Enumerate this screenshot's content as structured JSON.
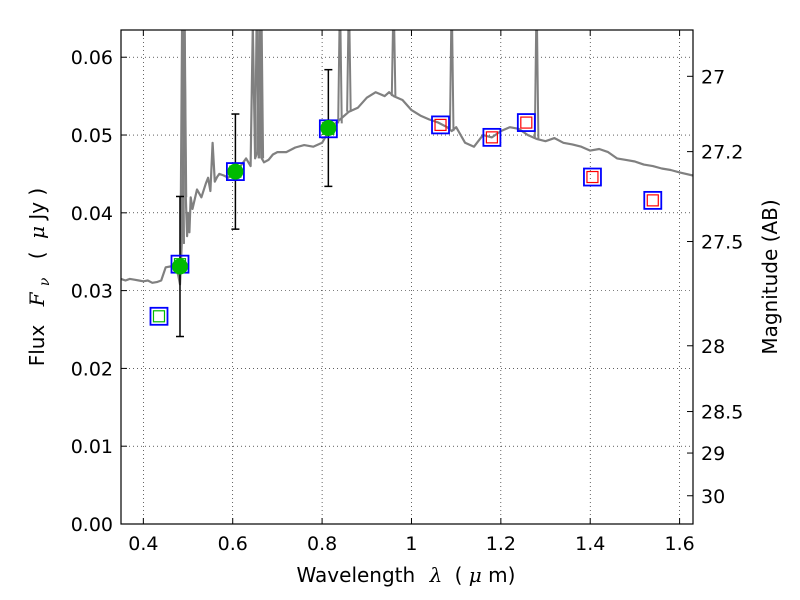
{
  "chart_data": {
    "type": "scatter",
    "title": "",
    "xlabel": {
      "prefix": "Wavelength",
      "symbol": "λ",
      "unit_open": "(",
      "unit_mu": "μ",
      "unit_rest": "m)"
    },
    "ylabel": {
      "prefix": "Flux",
      "symbol": "F",
      "symbol_sub": "ν",
      "unit_open": "(",
      "unit_mu": "μ",
      "unit_rest": "Jy )"
    },
    "y2label": "Magnitude (AB)",
    "xlim": [
      0.35,
      1.63
    ],
    "ylim": [
      0.0,
      0.0635
    ],
    "xticks": [
      0.4,
      0.6,
      0.8,
      1.0,
      1.2,
      1.4,
      1.6
    ],
    "xtick_labels": [
      "0.4",
      "0.6",
      "0.8",
      "1",
      "1.2",
      "1.4",
      "1.6"
    ],
    "yticks": [
      0.0,
      0.01,
      0.02,
      0.03,
      0.04,
      0.05,
      0.06
    ],
    "ytick_labels": [
      "0.00",
      "0.01",
      "0.02",
      "0.03",
      "0.04",
      "0.05",
      "0.06"
    ],
    "y2ticks": [
      {
        "label": "27",
        "mag": 27.0
      },
      {
        "label": "27.2",
        "mag": 27.2
      },
      {
        "label": "27.5",
        "mag": 27.5
      },
      {
        "label": "28",
        "mag": 28.0
      },
      {
        "label": "28.5",
        "mag": 28.5
      },
      {
        "label": "29",
        "mag": 29.0
      },
      {
        "label": "30",
        "mag": 30.0
      }
    ],
    "grid": true,
    "colors": {
      "model_line": "#808080",
      "observed_point": "#00bb00",
      "model_box": "#0000ff",
      "box_inner_green": "#00bb00",
      "box_inner_red": "#ff0000",
      "errorbar": "#000000"
    },
    "series": [
      {
        "name": "model-spectrum",
        "kind": "line",
        "x": [
          0.35,
          0.36,
          0.37,
          0.38,
          0.39,
          0.4,
          0.41,
          0.42,
          0.43,
          0.44,
          0.45,
          0.46,
          0.47,
          0.478,
          0.482,
          0.486,
          0.49,
          0.492,
          0.495,
          0.498,
          0.5,
          0.503,
          0.506,
          0.51,
          0.52,
          0.53,
          0.54,
          0.545,
          0.55,
          0.555,
          0.56,
          0.565,
          0.57,
          0.58,
          0.59,
          0.6,
          0.61,
          0.62,
          0.63,
          0.64,
          0.645,
          0.65,
          0.655,
          0.66,
          0.665,
          0.67,
          0.68,
          0.69,
          0.7,
          0.72,
          0.74,
          0.76,
          0.78,
          0.8,
          0.82,
          0.84,
          0.86,
          0.88,
          0.9,
          0.92,
          0.94,
          0.95,
          0.96,
          0.98,
          1.0,
          1.02,
          1.04,
          1.06,
          1.08,
          1.09,
          1.1,
          1.12,
          1.14,
          1.16,
          1.18,
          1.2,
          1.22,
          1.24,
          1.26,
          1.28,
          1.3,
          1.32,
          1.34,
          1.36,
          1.38,
          1.4,
          1.42,
          1.44,
          1.46,
          1.48,
          1.5,
          1.52,
          1.54,
          1.56,
          1.58,
          1.6,
          1.63
        ],
        "y": [
          0.0315,
          0.0313,
          0.0315,
          0.0314,
          0.0313,
          0.0312,
          0.0313,
          0.031,
          0.0311,
          0.0313,
          0.033,
          0.0331,
          0.0333,
          0.032,
          0.0308,
          0.0362,
          0.05,
          0.064,
          0.042,
          0.037,
          0.04,
          0.0375,
          0.042,
          0.0405,
          0.043,
          0.042,
          0.0438,
          0.0445,
          0.0428,
          0.049,
          0.044,
          0.0446,
          0.045,
          0.0448,
          0.0445,
          0.0452,
          0.0455,
          0.0462,
          0.047,
          0.046,
          0.064,
          0.047,
          0.0478,
          0.064,
          0.047,
          0.0465,
          0.0468,
          0.0475,
          0.0478,
          0.0478,
          0.0484,
          0.0487,
          0.0485,
          0.049,
          0.051,
          0.052,
          0.053,
          0.0535,
          0.0548,
          0.0555,
          0.055,
          0.0555,
          0.055,
          0.0545,
          0.0532,
          0.0525,
          0.052,
          0.0516,
          0.051,
          0.0505,
          0.051,
          0.049,
          0.0485,
          0.05,
          0.0497,
          0.0505,
          0.051,
          0.0508,
          0.05,
          0.0495,
          0.0492,
          0.0496,
          0.049,
          0.0488,
          0.0485,
          0.048,
          0.0482,
          0.0478,
          0.047,
          0.0468,
          0.0466,
          0.0462,
          0.046,
          0.0457,
          0.0455,
          0.0452,
          0.0448
        ]
      },
      {
        "name": "emission-spikes",
        "kind": "line-spikes",
        "x": [
          0.487,
          0.492,
          0.664,
          0.654,
          0.84,
          0.86,
          0.96,
          1.09,
          1.28
        ],
        "y_base": [
          0.036,
          0.042,
          0.047,
          0.047,
          0.0515,
          0.053,
          0.055,
          0.0505,
          0.0495
        ]
      },
      {
        "name": "observed-photometry",
        "kind": "scatter-errorbar",
        "x": [
          0.482,
          0.606,
          0.814
        ],
        "y": [
          0.0331,
          0.0453,
          0.0509
        ],
        "yerr": [
          0.009,
          0.0074,
          0.0075
        ]
      },
      {
        "name": "model-photometry-green",
        "kind": "square-markers",
        "x": [
          0.435,
          0.482,
          0.606,
          0.814
        ],
        "y": [
          0.0267,
          0.0334,
          0.0453,
          0.0508
        ]
      },
      {
        "name": "model-photometry-red",
        "kind": "square-markers",
        "x": [
          1.065,
          1.18,
          1.257,
          1.405,
          1.54
        ],
        "y": [
          0.0513,
          0.0497,
          0.0516,
          0.0446,
          0.0416
        ]
      }
    ]
  }
}
